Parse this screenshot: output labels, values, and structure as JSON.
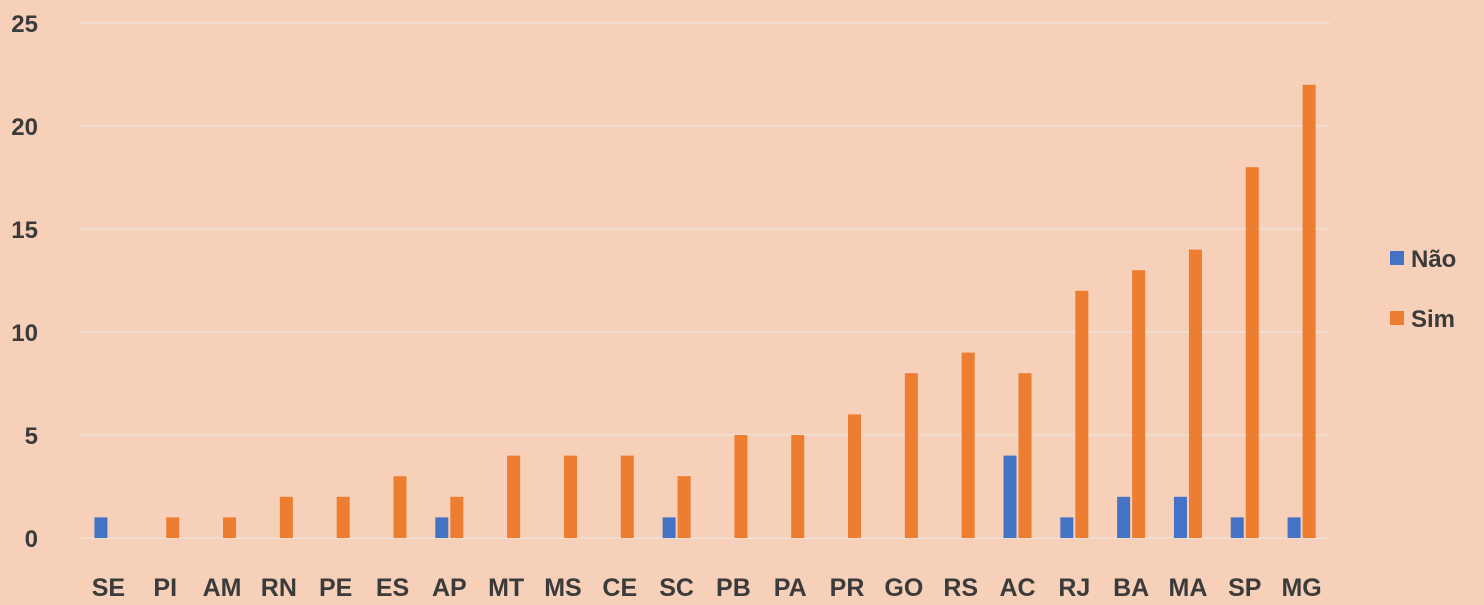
{
  "chart_data": {
    "type": "bar",
    "title": "",
    "xlabel": "",
    "ylabel": "",
    "categories": [
      "SE",
      "PI",
      "AM",
      "RN",
      "PE",
      "ES",
      "AP",
      "MT",
      "MS",
      "CE",
      "SC",
      "PB",
      "PA",
      "PR",
      "GO",
      "RS",
      "AC",
      "RJ",
      "BA",
      "MA",
      "SP",
      "MG"
    ],
    "series": [
      {
        "name": "Não",
        "color": "#4472c4",
        "values": [
          1,
          0,
          0,
          0,
          0,
          0,
          1,
          0,
          0,
          0,
          1,
          0,
          0,
          0,
          0,
          0,
          4,
          1,
          2,
          2,
          1,
          1
        ]
      },
      {
        "name": "Sim",
        "color": "#ed7d31",
        "values": [
          0,
          1,
          1,
          2,
          2,
          3,
          2,
          4,
          4,
          4,
          3,
          5,
          5,
          6,
          8,
          9,
          8,
          12,
          13,
          14,
          18,
          22
        ]
      }
    ],
    "ylim": [
      0,
      25
    ],
    "yticks": [
      0,
      5,
      10,
      15,
      20,
      25
    ],
    "grid": true,
    "legend": "right"
  }
}
